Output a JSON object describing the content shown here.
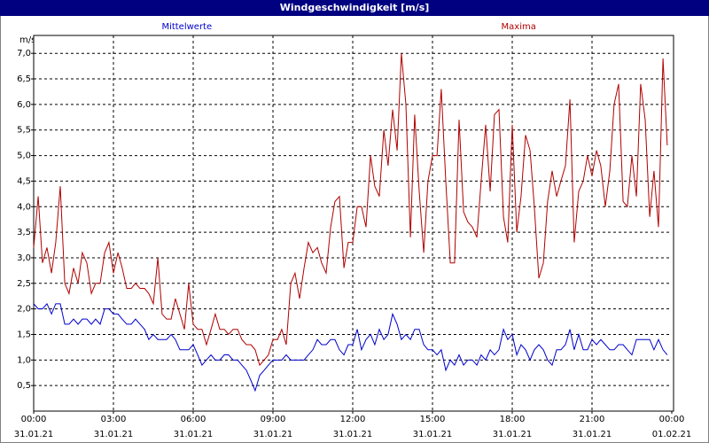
{
  "chart_data": {
    "type": "line",
    "title": "Windgeschwindigkeit [m/s]",
    "y_unit": "m/s",
    "xlim": [
      0,
      24
    ],
    "xticks": [
      {
        "value": 0,
        "label": "00:00"
      },
      {
        "value": 3,
        "label": "03:00"
      },
      {
        "value": 6,
        "label": "06:00"
      },
      {
        "value": 9,
        "label": "09:00"
      },
      {
        "value": 12,
        "label": "12:00"
      },
      {
        "value": 15,
        "label": "15:00"
      },
      {
        "value": 18,
        "label": "18:00"
      },
      {
        "value": 21,
        "label": "21:00"
      },
      {
        "value": 24,
        "label": "00:00"
      }
    ],
    "xtick_dates": [
      "31.01.21",
      "31.01.21",
      "31.01.21",
      "31.01.21",
      "31.01.21",
      "31.01.21",
      "31.01.21",
      "31.01.21",
      "01.02.21"
    ],
    "ylim": [
      0,
      7.35
    ],
    "yticks": [
      {
        "value": 0.5,
        "label": "0,5"
      },
      {
        "value": 1,
        "label": "1,0"
      },
      {
        "value": 1.5,
        "label": "1,5"
      },
      {
        "value": 2,
        "label": "2,0"
      },
      {
        "value": 2.5,
        "label": "2,5"
      },
      {
        "value": 3,
        "label": "3,0"
      },
      {
        "value": 3.5,
        "label": "3,5"
      },
      {
        "value": 4,
        "label": "4,0"
      },
      {
        "value": 4.5,
        "label": "4,5"
      },
      {
        "value": 5,
        "label": "5,0"
      },
      {
        "value": 5.5,
        "label": "5,5"
      },
      {
        "value": 6,
        "label": "6,0"
      },
      {
        "value": 6.5,
        "label": "6,5"
      },
      {
        "value": 7,
        "label": "7,0"
      }
    ],
    "grid": true,
    "x": [
      0,
      0.17,
      0.33,
      0.5,
      0.67,
      0.83,
      1,
      1.17,
      1.33,
      1.5,
      1.67,
      1.83,
      2,
      2.17,
      2.33,
      2.5,
      2.67,
      2.83,
      3,
      3.17,
      3.33,
      3.5,
      3.67,
      3.83,
      4,
      4.17,
      4.33,
      4.5,
      4.67,
      4.83,
      5,
      5.17,
      5.33,
      5.5,
      5.67,
      5.83,
      6,
      6.17,
      6.33,
      6.5,
      6.67,
      6.83,
      7,
      7.17,
      7.33,
      7.5,
      7.67,
      7.83,
      8,
      8.17,
      8.33,
      8.5,
      8.67,
      8.83,
      9,
      9.17,
      9.33,
      9.5,
      9.67,
      9.83,
      10,
      10.17,
      10.33,
      10.5,
      10.67,
      10.83,
      11,
      11.17,
      11.33,
      11.5,
      11.67,
      11.83,
      12,
      12.17,
      12.33,
      12.5,
      12.67,
      12.83,
      13,
      13.17,
      13.33,
      13.5,
      13.67,
      13.83,
      14,
      14.17,
      14.33,
      14.5,
      14.67,
      14.83,
      15,
      15.17,
      15.33,
      15.5,
      15.67,
      15.83,
      16,
      16.17,
      16.33,
      16.5,
      16.67,
      16.83,
      17,
      17.17,
      17.33,
      17.5,
      17.67,
      17.83,
      18,
      18.17,
      18.33,
      18.5,
      18.67,
      18.83,
      19,
      19.17,
      19.33,
      19.5,
      19.67,
      19.83,
      20,
      20.17,
      20.33,
      20.5,
      20.67,
      20.83,
      21,
      21.17,
      21.33,
      21.5,
      21.67,
      21.83,
      22,
      22.17,
      22.33,
      22.5,
      22.67,
      22.83,
      23,
      23.17,
      23.33,
      23.5,
      23.67,
      23.83
    ],
    "series": [
      {
        "name": "Mittelwerte",
        "color": "#0000cc",
        "values": [
          2.1,
          2.0,
          2.0,
          2.1,
          1.9,
          2.1,
          2.1,
          1.7,
          1.7,
          1.8,
          1.7,
          1.8,
          1.8,
          1.7,
          1.8,
          1.7,
          2.0,
          2.0,
          1.9,
          1.9,
          1.8,
          1.7,
          1.7,
          1.8,
          1.7,
          1.6,
          1.4,
          1.5,
          1.4,
          1.4,
          1.4,
          1.5,
          1.4,
          1.2,
          1.2,
          1.2,
          1.3,
          1.1,
          0.9,
          1.0,
          1.1,
          1.0,
          1.0,
          1.1,
          1.1,
          1.0,
          1.0,
          0.9,
          0.8,
          0.6,
          0.4,
          0.7,
          0.8,
          0.9,
          1.0,
          1.0,
          1.0,
          1.1,
          1.0,
          1.0,
          1.0,
          1.0,
          1.1,
          1.2,
          1.4,
          1.3,
          1.3,
          1.4,
          1.4,
          1.2,
          1.1,
          1.3,
          1.3,
          1.6,
          1.2,
          1.4,
          1.5,
          1.3,
          1.6,
          1.4,
          1.5,
          1.9,
          1.7,
          1.4,
          1.5,
          1.4,
          1.6,
          1.6,
          1.3,
          1.2,
          1.2,
          1.1,
          1.2,
          0.8,
          1.0,
          0.9,
          1.1,
          0.9,
          1.0,
          1.0,
          0.9,
          1.1,
          1.0,
          1.2,
          1.1,
          1.2,
          1.6,
          1.4,
          1.5,
          1.1,
          1.3,
          1.2,
          1.0,
          1.2,
          1.3,
          1.2,
          1.0,
          0.9,
          1.2,
          1.2,
          1.3,
          1.6,
          1.2,
          1.5,
          1.2,
          1.2,
          1.4,
          1.3,
          1.4,
          1.3,
          1.2,
          1.2,
          1.3,
          1.3,
          1.2,
          1.1,
          1.4,
          1.4,
          1.4,
          1.4,
          1.2,
          1.4,
          1.2,
          1.1
        ]
      },
      {
        "name": "Maxima",
        "color": "#b00000",
        "values": [
          3.2,
          4.2,
          2.9,
          3.2,
          2.7,
          3.3,
          4.4,
          2.5,
          2.3,
          2.8,
          2.5,
          3.1,
          2.9,
          2.3,
          2.5,
          2.5,
          3.1,
          3.3,
          2.7,
          3.1,
          2.8,
          2.4,
          2.4,
          2.5,
          2.4,
          2.4,
          2.3,
          2.1,
          3.0,
          1.9,
          1.8,
          1.8,
          2.2,
          1.9,
          1.6,
          2.5,
          1.7,
          1.6,
          1.6,
          1.3,
          1.6,
          1.9,
          1.6,
          1.6,
          1.5,
          1.6,
          1.6,
          1.4,
          1.3,
          1.3,
          1.2,
          0.9,
          1.0,
          1.1,
          1.4,
          1.4,
          1.6,
          1.3,
          2.5,
          2.7,
          2.2,
          2.8,
          3.3,
          3.1,
          3.2,
          2.9,
          2.7,
          3.6,
          4.1,
          4.2,
          2.8,
          3.3,
          3.3,
          4.0,
          4.0,
          3.6,
          5.0,
          4.4,
          4.2,
          5.5,
          4.8,
          5.9,
          5.1,
          7.0,
          6.0,
          3.4,
          5.8,
          4.3,
          3.1,
          4.5,
          5.0,
          5.0,
          6.3,
          4.5,
          2.9,
          2.9,
          5.7,
          3.9,
          3.7,
          3.6,
          3.4,
          4.5,
          5.6,
          4.3,
          5.8,
          5.9,
          3.8,
          3.3,
          5.6,
          3.5,
          4.2,
          5.4,
          5.1,
          4.0,
          2.6,
          2.9,
          4.1,
          4.7,
          4.2,
          4.5,
          4.8,
          6.1,
          3.3,
          4.3,
          4.5,
          5.0,
          4.6,
          5.1,
          4.8,
          4.0,
          4.7,
          6.0,
          6.4,
          4.1,
          4.0,
          5.0,
          4.2,
          6.4,
          5.7,
          3.8,
          4.7,
          3.6,
          6.9,
          5.2
        ]
      }
    ]
  }
}
